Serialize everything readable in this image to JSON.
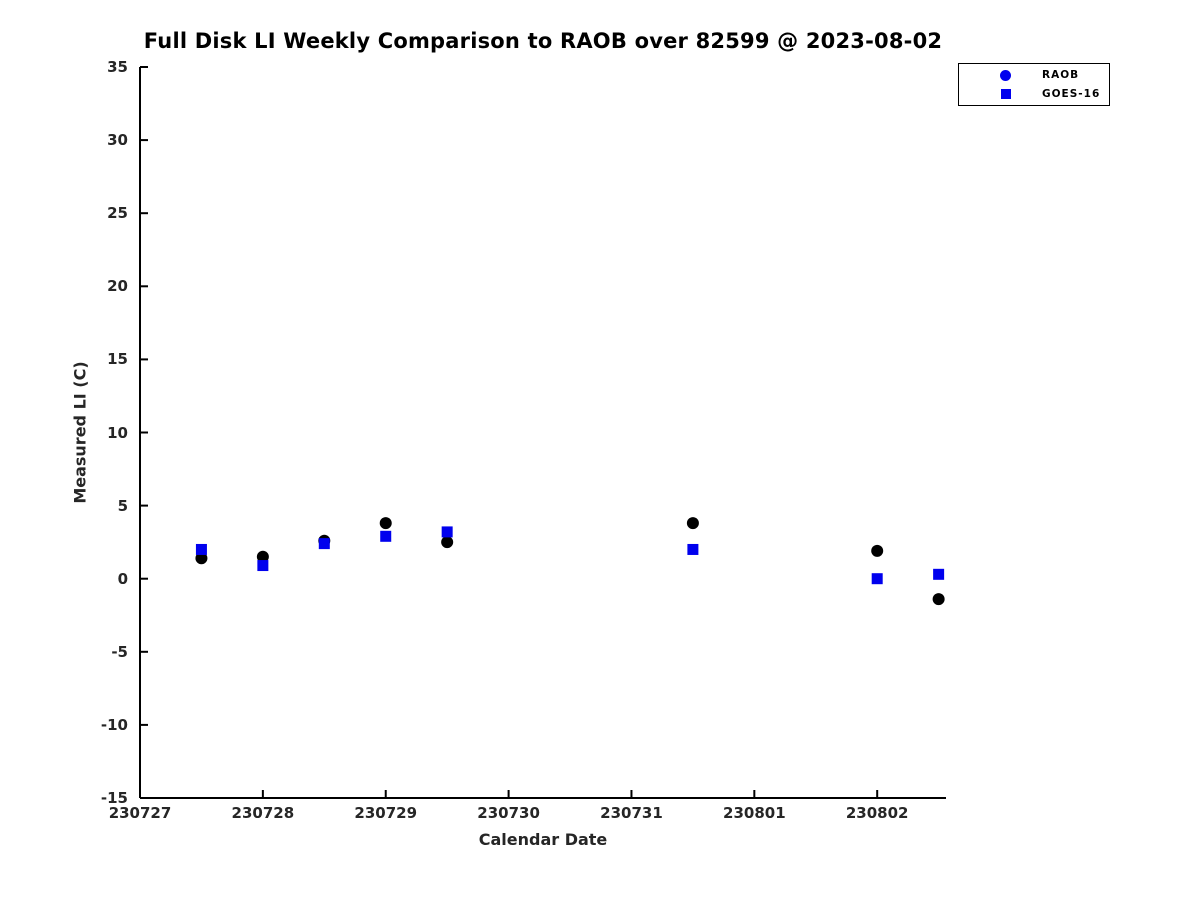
{
  "chart_data": {
    "type": "scatter",
    "title": "Full Disk LI Weekly Comparison to RAOB over 82599 @ 2023-08-02",
    "xlabel": "Calendar Date",
    "ylabel": "Measured LI (C)",
    "ylim": [
      -15,
      35
    ],
    "ytick_step": 5,
    "xlim": [
      0,
      6.56
    ],
    "xticks": [
      {
        "offset": 0,
        "label": "230727"
      },
      {
        "offset": 1,
        "label": "230728"
      },
      {
        "offset": 2,
        "label": "230729"
      },
      {
        "offset": 3,
        "label": "230730"
      },
      {
        "offset": 4,
        "label": "230731"
      },
      {
        "offset": 5,
        "label": "230801"
      },
      {
        "offset": 6,
        "label": "230802"
      }
    ],
    "grid": false,
    "legend_position": "top-right",
    "series": [
      {
        "name": "RAOB",
        "marker": "circle",
        "color": "#000000",
        "legend_marker_color": "#0000EE",
        "x": [
          0.5,
          1.0,
          1.5,
          2.0,
          2.5,
          4.5,
          6.0,
          6.5
        ],
        "y": [
          1.4,
          1.5,
          2.6,
          3.8,
          2.5,
          3.8,
          1.9,
          -1.4
        ]
      },
      {
        "name": "GOES-16",
        "marker": "square",
        "color": "#0000EE",
        "legend_marker_color": "#0000EE",
        "x": [
          0.5,
          1.0,
          1.5,
          2.0,
          2.5,
          4.5,
          6.0,
          6.5
        ],
        "y": [
          2.0,
          0.9,
          2.4,
          2.9,
          3.2,
          2.0,
          0.0,
          0.3
        ]
      }
    ],
    "axis_color": "#000000",
    "background_color": "#ffffff"
  }
}
